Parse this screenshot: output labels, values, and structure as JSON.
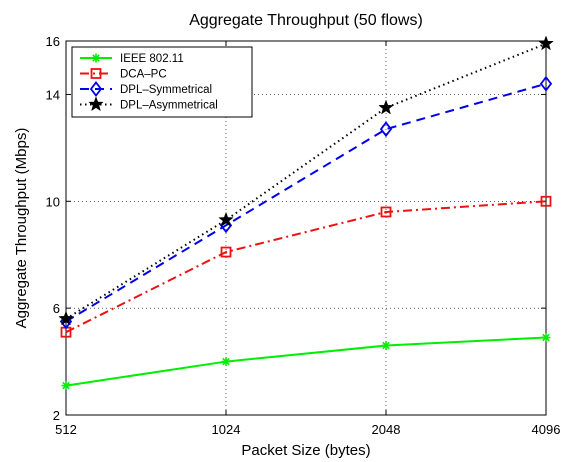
{
  "chart_data": {
    "type": "line",
    "title": "Aggregate Throughput (50 flows)",
    "xlabel": "Packet Size (bytes)",
    "ylabel": "Aggregate Throughput (Mbps)",
    "x": [
      512,
      1024,
      2048,
      4096
    ],
    "x_ticks": [
      "512",
      "1024",
      "2048",
      "4096"
    ],
    "x_scale": "log2",
    "y_ticks": [
      2,
      6,
      10,
      14,
      16
    ],
    "ylim": [
      2,
      16
    ],
    "grid": true,
    "legend_position": "top-left",
    "series": [
      {
        "name": "IEEE 802.11",
        "color": "#00ee00",
        "dash": "solid",
        "marker": "asterisk",
        "values": [
          3.1,
          4.0,
          4.6,
          4.9
        ]
      },
      {
        "name": "DCA–PC",
        "color": "#ee1111",
        "dash": "dashdot",
        "marker": "square",
        "values": [
          5.1,
          8.1,
          9.6,
          10.0
        ]
      },
      {
        "name": "DPL–Symmetrical",
        "color": "#0000ee",
        "dash": "dashed",
        "marker": "diamond",
        "values": [
          5.5,
          9.1,
          12.7,
          14.4
        ]
      },
      {
        "name": "DPL–Asymmetrical",
        "color": "#000000",
        "dash": "dotted",
        "marker": "star",
        "values": [
          5.6,
          9.3,
          13.5,
          15.9
        ]
      }
    ]
  }
}
